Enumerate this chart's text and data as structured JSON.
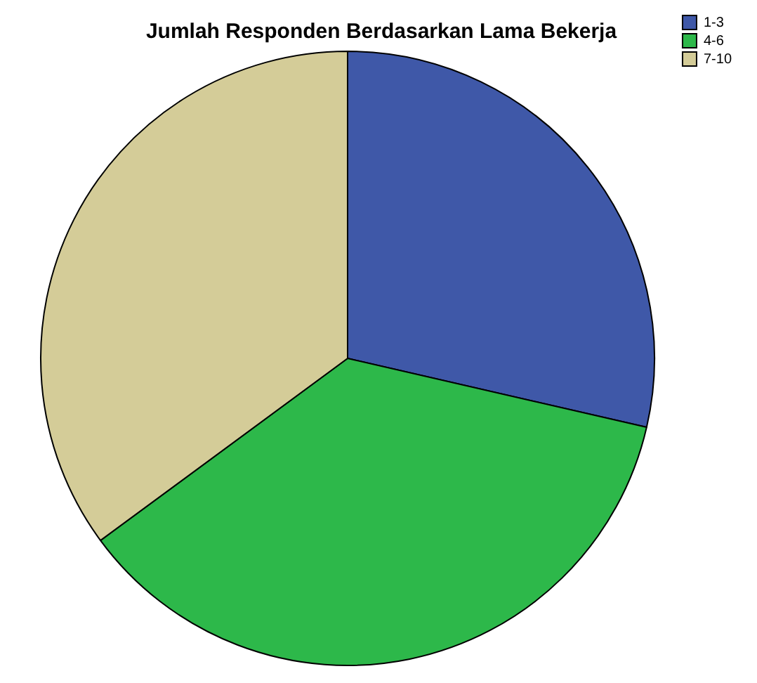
{
  "chart_data": {
    "type": "pie",
    "title": "Jumlah Responden Berdasarkan Lama Bekerja",
    "categories": [
      "1-3",
      "4-6",
      "7-10"
    ],
    "values": [
      28.6,
      36.3,
      35.1
    ],
    "colors": [
      "#3f58a8",
      "#2db84a",
      "#d4cc98"
    ],
    "legend": "top right"
  }
}
